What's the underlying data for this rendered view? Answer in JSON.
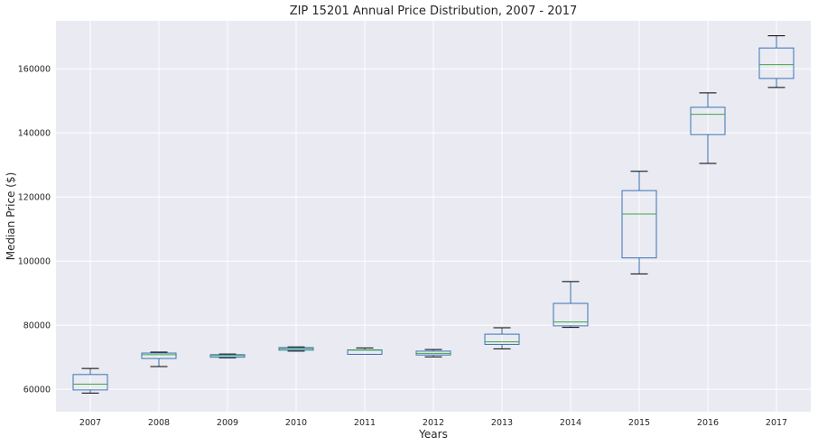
{
  "chart_data": {
    "type": "box",
    "title": "ZIP 15201 Annual Price Distribution, 2007 - 2017",
    "xlabel": "Years",
    "ylabel": "Median Price ($)",
    "ylim": [
      53000,
      175000
    ],
    "yticks": [
      60000,
      80000,
      100000,
      120000,
      140000,
      160000
    ],
    "grid": true,
    "categories": [
      "2007",
      "2008",
      "2009",
      "2010",
      "2011",
      "2012",
      "2013",
      "2014",
      "2015",
      "2016",
      "2017"
    ],
    "boxes": [
      {
        "min": 58800,
        "q1": 59800,
        "median": 61600,
        "q3": 64600,
        "max": 66500
      },
      {
        "min": 67100,
        "q1": 69600,
        "median": 70800,
        "q3": 71300,
        "max": 71600
      },
      {
        "min": 69800,
        "q1": 70000,
        "median": 70500,
        "q3": 70800,
        "max": 71000
      },
      {
        "min": 71900,
        "q1": 72200,
        "median": 72700,
        "q3": 73000,
        "max": 73200
      },
      {
        "min": 70900,
        "q1": 70900,
        "median": 72200,
        "q3": 72300,
        "max": 72900
      },
      {
        "min": 70100,
        "q1": 70700,
        "median": 71200,
        "q3": 71900,
        "max": 72400
      },
      {
        "min": 72600,
        "q1": 74000,
        "median": 74800,
        "q3": 77200,
        "max": 79200
      },
      {
        "min": 79300,
        "q1": 79800,
        "median": 81000,
        "q3": 86800,
        "max": 93600
      },
      {
        "min": 96000,
        "q1": 101000,
        "median": 114700,
        "q3": 122000,
        "max": 128000
      },
      {
        "min": 130500,
        "q1": 139500,
        "median": 145800,
        "q3": 148000,
        "max": 152500
      },
      {
        "min": 154200,
        "q1": 157000,
        "median": 161300,
        "q3": 166500,
        "max": 170300
      }
    ],
    "colors": {
      "box": "#3874b5",
      "median": "#3da644",
      "whisker": "#3874b5",
      "cap": "#000000",
      "background": "#eaeaf2",
      "grid": "#ffffff"
    }
  }
}
